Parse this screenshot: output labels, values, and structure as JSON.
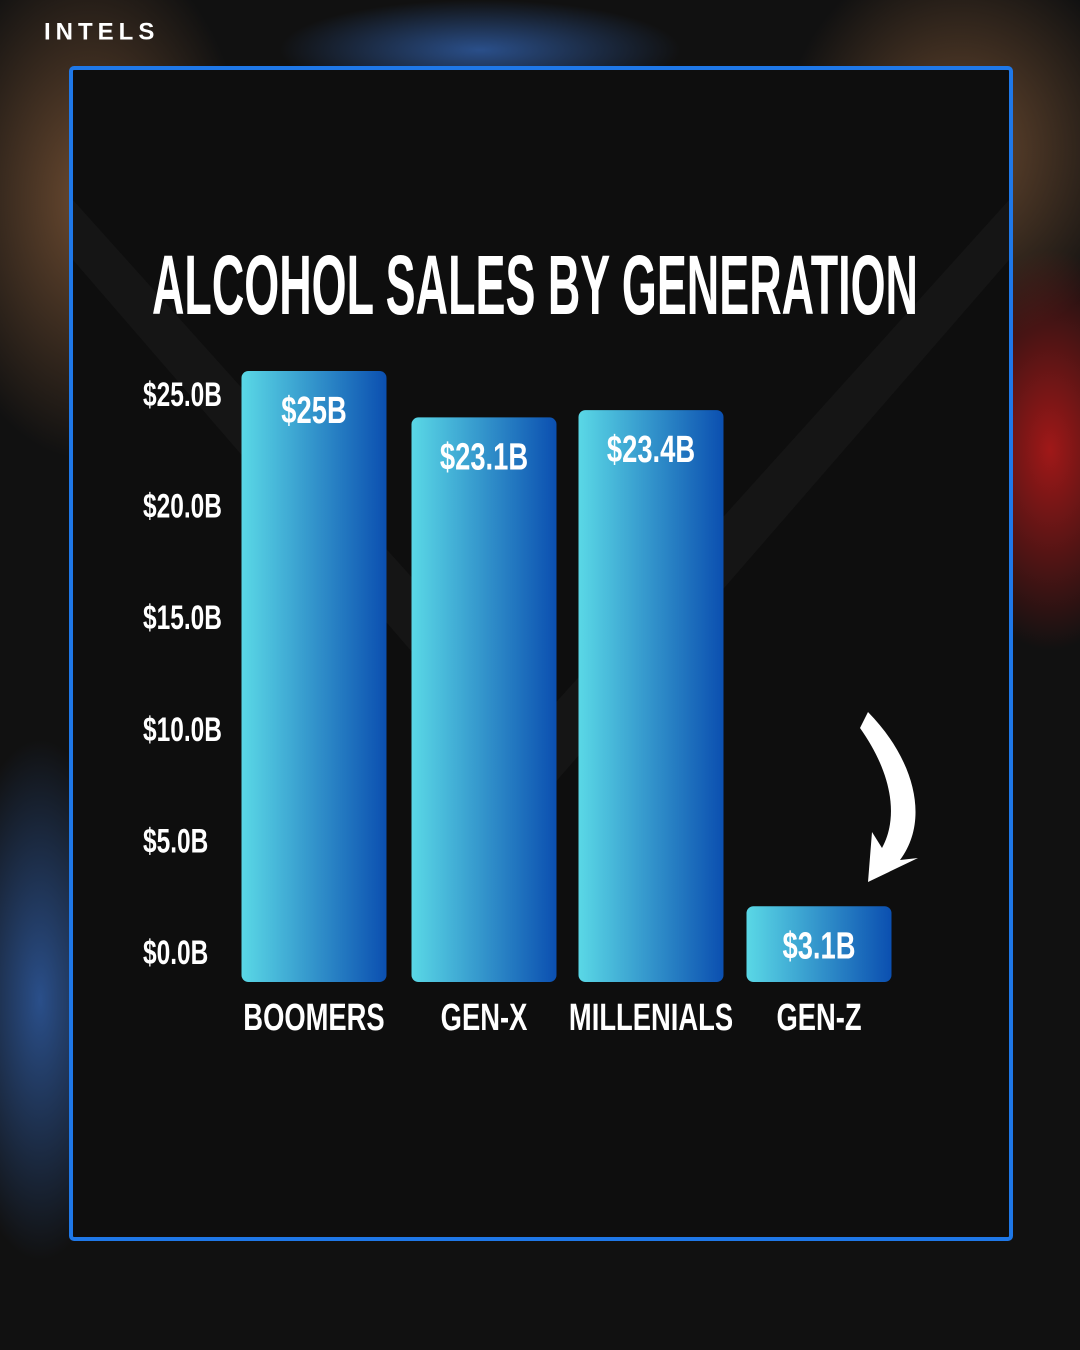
{
  "brand": "INTELS",
  "chart_data": {
    "type": "bar",
    "title": "ALCOHOL SALES BY GENERATION",
    "categories": [
      "BOOMERS",
      "GEN-X",
      "MILLENIALS",
      "GEN-Z"
    ],
    "values": [
      25,
      23.1,
      23.4,
      3.1
    ],
    "value_labels": [
      "$25B",
      "$23.1B",
      "$23.4B",
      "$3.1B"
    ],
    "color": "#0b4fb0",
    "gradient_color": "#5ad8e6",
    "ylim": [
      0,
      25
    ],
    "yticks": [
      {
        "value": 0,
        "label": "$0.0B"
      },
      {
        "value": 5,
        "label": "$5.0B"
      },
      {
        "value": 10,
        "label": "$10.0B"
      },
      {
        "value": 15,
        "label": "$15.0B"
      },
      {
        "value": 20,
        "label": "$20.0B"
      },
      {
        "value": 25,
        "label": "$25.0B"
      }
    ],
    "grid": false
  }
}
